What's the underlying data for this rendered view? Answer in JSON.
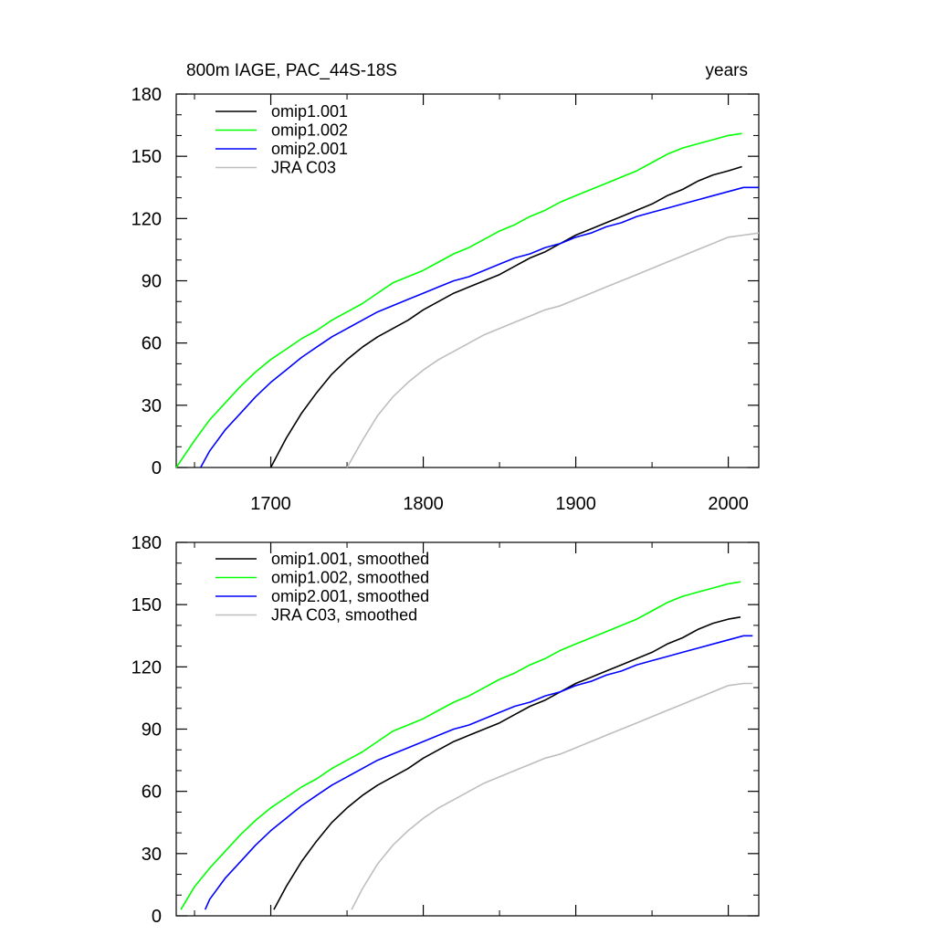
{
  "chart_data": [
    {
      "type": "line",
      "title": "800m IAGE, PAC_44S-18S",
      "units": "years",
      "xlim": [
        1638,
        2020
      ],
      "ylim": [
        0,
        180
      ],
      "x_ticks": [
        1700,
        1800,
        1900,
        2000
      ],
      "x_tick_labels": [
        "1700",
        "1800",
        "1900",
        "2000"
      ],
      "y_ticks": [
        0,
        30,
        60,
        90,
        120,
        150,
        180
      ],
      "y_tick_labels": [
        "0",
        "30",
        "60",
        "90",
        "120",
        "150",
        "180"
      ],
      "grid": false,
      "legend_position": "top-left",
      "series": [
        {
          "name": "omip1.001",
          "color": "#000000",
          "x": [
            1700,
            1710,
            1720,
            1730,
            1740,
            1750,
            1760,
            1770,
            1780,
            1790,
            1800,
            1810,
            1820,
            1830,
            1840,
            1850,
            1860,
            1870,
            1880,
            1890,
            1900,
            1910,
            1920,
            1930,
            1940,
            1950,
            1960,
            1970,
            1980,
            1990,
            2000,
            2009
          ],
          "y": [
            0,
            14,
            26,
            36,
            45,
            52,
            58,
            63,
            67,
            71,
            76,
            80,
            84,
            87,
            90,
            93,
            97,
            101,
            104,
            108,
            112,
            115,
            118,
            121,
            124,
            127,
            131,
            134,
            138,
            141,
            143,
            145
          ]
        },
        {
          "name": "omip1.002",
          "color": "#00ff00",
          "x": [
            1638,
            1650,
            1660,
            1670,
            1680,
            1690,
            1700,
            1710,
            1720,
            1730,
            1740,
            1750,
            1760,
            1770,
            1780,
            1790,
            1800,
            1810,
            1820,
            1830,
            1840,
            1850,
            1860,
            1870,
            1880,
            1890,
            1900,
            1910,
            1920,
            1930,
            1940,
            1950,
            1960,
            1970,
            1980,
            1990,
            2000,
            2009
          ],
          "y": [
            0,
            13,
            23,
            31,
            39,
            46,
            52,
            57,
            62,
            66,
            71,
            75,
            79,
            84,
            89,
            92,
            95,
            99,
            103,
            106,
            110,
            114,
            117,
            121,
            124,
            128,
            131,
            134,
            137,
            140,
            143,
            147,
            151,
            154,
            156,
            158,
            160,
            161
          ]
        },
        {
          "name": "omip2.001",
          "color": "#0000ff",
          "x": [
            1654,
            1660,
            1670,
            1680,
            1690,
            1700,
            1710,
            1720,
            1730,
            1740,
            1750,
            1760,
            1770,
            1780,
            1790,
            1800,
            1810,
            1820,
            1830,
            1840,
            1850,
            1860,
            1870,
            1880,
            1890,
            1900,
            1910,
            1920,
            1930,
            1940,
            1950,
            1960,
            1970,
            1980,
            1990,
            2000,
            2010,
            2020
          ],
          "y": [
            0,
            8,
            18,
            26,
            34,
            41,
            47,
            53,
            58,
            63,
            67,
            71,
            75,
            78,
            81,
            84,
            87,
            90,
            92,
            95,
            98,
            101,
            103,
            106,
            108,
            111,
            113,
            116,
            118,
            121,
            123,
            125,
            127,
            129,
            131,
            133,
            135,
            135
          ]
        },
        {
          "name": "JRA C03",
          "color": "#bebebe",
          "x": [
            1750,
            1760,
            1770,
            1780,
            1790,
            1800,
            1810,
            1820,
            1830,
            1840,
            1850,
            1860,
            1870,
            1880,
            1890,
            1900,
            1910,
            1920,
            1930,
            1940,
            1950,
            1960,
            1970,
            1980,
            1990,
            2000,
            2010,
            2020
          ],
          "y": [
            0,
            13,
            25,
            34,
            41,
            47,
            52,
            56,
            60,
            64,
            67,
            70,
            73,
            76,
            78,
            81,
            84,
            87,
            90,
            93,
            96,
            99,
            102,
            105,
            108,
            111,
            112,
            113
          ]
        }
      ]
    },
    {
      "type": "line",
      "title": "",
      "xlim": [
        1638,
        2020
      ],
      "ylim": [
        0,
        180
      ],
      "x_ticks": [
        1700,
        1800,
        1900,
        2000
      ],
      "y_ticks": [
        0,
        30,
        60,
        90,
        120,
        150,
        180
      ],
      "y_tick_labels": [
        "0",
        "30",
        "60",
        "90",
        "120",
        "150",
        "180"
      ],
      "grid": false,
      "legend_position": "top-left",
      "series": [
        {
          "name": "omip1.001, smoothed",
          "color": "#000000",
          "x": [
            1702,
            1710,
            1720,
            1730,
            1740,
            1750,
            1760,
            1770,
            1780,
            1790,
            1800,
            1810,
            1820,
            1830,
            1840,
            1850,
            1860,
            1870,
            1880,
            1890,
            1900,
            1910,
            1920,
            1930,
            1940,
            1950,
            1960,
            1970,
            1980,
            1990,
            2000,
            2008
          ],
          "y": [
            3,
            14,
            26,
            36,
            45,
            52,
            58,
            63,
            67,
            71,
            76,
            80,
            84,
            87,
            90,
            93,
            97,
            101,
            104,
            108,
            112,
            115,
            118,
            121,
            124,
            127,
            131,
            134,
            138,
            141,
            143,
            144
          ]
        },
        {
          "name": "omip1.002, smoothed",
          "color": "#00ff00",
          "x": [
            1641,
            1650,
            1660,
            1670,
            1680,
            1690,
            1700,
            1710,
            1720,
            1730,
            1740,
            1750,
            1760,
            1770,
            1780,
            1790,
            1800,
            1810,
            1820,
            1830,
            1840,
            1850,
            1860,
            1870,
            1880,
            1890,
            1900,
            1910,
            1920,
            1930,
            1940,
            1950,
            1960,
            1970,
            1980,
            1990,
            2000,
            2008
          ],
          "y": [
            3,
            14,
            23,
            31,
            39,
            46,
            52,
            57,
            62,
            66,
            71,
            75,
            79,
            84,
            89,
            92,
            95,
            99,
            103,
            106,
            110,
            114,
            117,
            121,
            124,
            128,
            131,
            134,
            137,
            140,
            143,
            147,
            151,
            154,
            156,
            158,
            160,
            161
          ]
        },
        {
          "name": "omip2.001, smoothed",
          "color": "#0000ff",
          "x": [
            1657,
            1660,
            1670,
            1680,
            1690,
            1700,
            1710,
            1720,
            1730,
            1740,
            1750,
            1760,
            1770,
            1780,
            1790,
            1800,
            1810,
            1820,
            1830,
            1840,
            1850,
            1860,
            1870,
            1880,
            1890,
            1900,
            1910,
            1920,
            1930,
            1940,
            1950,
            1960,
            1970,
            1980,
            1990,
            2000,
            2010,
            2016
          ],
          "y": [
            3,
            8,
            18,
            26,
            34,
            41,
            47,
            53,
            58,
            63,
            67,
            71,
            75,
            78,
            81,
            84,
            87,
            90,
            92,
            95,
            98,
            101,
            103,
            106,
            108,
            111,
            113,
            116,
            118,
            121,
            123,
            125,
            127,
            129,
            131,
            133,
            135,
            135
          ]
        },
        {
          "name": "JRA C03, smoothed",
          "color": "#bebebe",
          "x": [
            1753,
            1760,
            1770,
            1780,
            1790,
            1800,
            1810,
            1820,
            1830,
            1840,
            1850,
            1860,
            1870,
            1880,
            1890,
            1900,
            1910,
            1920,
            1930,
            1940,
            1950,
            1960,
            1970,
            1980,
            1990,
            2000,
            2010,
            2016
          ],
          "y": [
            3,
            13,
            25,
            34,
            41,
            47,
            52,
            56,
            60,
            64,
            67,
            70,
            73,
            76,
            78,
            81,
            84,
            87,
            90,
            93,
            96,
            99,
            102,
            105,
            108,
            111,
            112,
            112
          ]
        }
      ]
    }
  ]
}
